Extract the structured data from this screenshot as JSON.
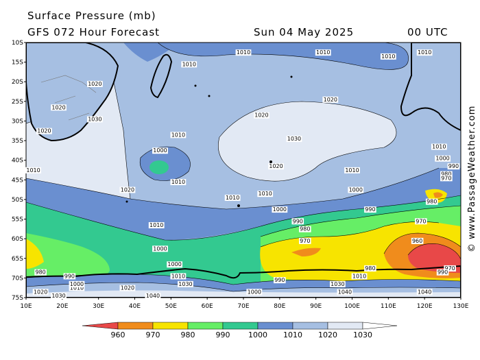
{
  "header": {
    "title": "Surface Pressure (mb)",
    "subtitle": "GFS 072 Hour Forecast",
    "date": "Sun 04 May 2025",
    "time": "00 UTC"
  },
  "credit": "© www.PassageWeather.com",
  "axes": {
    "lat_labels": [
      "10S",
      "15S",
      "20S",
      "25S",
      "30S",
      "35S",
      "40S",
      "45S",
      "50S",
      "55S",
      "60S",
      "65S",
      "70S",
      "75S"
    ],
    "lon_labels": [
      "10E",
      "20E",
      "30E",
      "40E",
      "50E",
      "60E",
      "70E",
      "80E",
      "90E",
      "100E",
      "110E",
      "120E",
      "130E"
    ]
  },
  "legend": {
    "values": [
      "960",
      "970",
      "980",
      "990",
      "1000",
      "1010",
      "1020",
      "1030"
    ],
    "colors": [
      "#e84848",
      "#f08c1c",
      "#f7e400",
      "#66ee66",
      "#33c990",
      "#6a8fd0",
      "#a6bfe2",
      "#e2e9f4"
    ]
  },
  "isobar_labels": [
    {
      "text": "1010",
      "lon": 70,
      "lat": -13
    },
    {
      "text": "1010",
      "lon": 92,
      "lat": -13
    },
    {
      "text": "1010",
      "lon": 120,
      "lat": -13
    },
    {
      "text": "1010",
      "lon": 55,
      "lat": -16
    },
    {
      "text": "1010",
      "lon": 110,
      "lat": -14
    },
    {
      "text": "1020",
      "lon": 29,
      "lat": -21
    },
    {
      "text": "1020",
      "lon": 19,
      "lat": -27
    },
    {
      "text": "1030",
      "lon": 29,
      "lat": -30
    },
    {
      "text": "1020",
      "lon": 15,
      "lat": -33
    },
    {
      "text": "1020",
      "lon": 94,
      "lat": -25
    },
    {
      "text": "1020",
      "lon": 75,
      "lat": -29
    },
    {
      "text": "1030",
      "lon": 84,
      "lat": -35
    },
    {
      "text": "1010",
      "lon": 52,
      "lat": -34
    },
    {
      "text": "1000",
      "lon": 47,
      "lat": -38
    },
    {
      "text": "1010",
      "lon": 124,
      "lat": -37
    },
    {
      "text": "1000",
      "lon": 125,
      "lat": -40
    },
    {
      "text": "1010",
      "lon": 12,
      "lat": -43
    },
    {
      "text": "1010",
      "lon": 52,
      "lat": -46
    },
    {
      "text": "1020",
      "lon": 79,
      "lat": -42
    },
    {
      "text": "1010",
      "lon": 100,
      "lat": -43
    },
    {
      "text": "980",
      "lon": 126,
      "lat": -44
    },
    {
      "text": "970",
      "lon": 126,
      "lat": -45
    },
    {
      "text": "990",
      "lon": 128,
      "lat": -42
    },
    {
      "text": "1020",
      "lon": 38,
      "lat": -48
    },
    {
      "text": "1010",
      "lon": 67,
      "lat": -50
    },
    {
      "text": "1010",
      "lon": 76,
      "lat": -49
    },
    {
      "text": "1000",
      "lon": 101,
      "lat": -48
    },
    {
      "text": "1000",
      "lon": 80,
      "lat": -53
    },
    {
      "text": "990",
      "lon": 85,
      "lat": -56
    },
    {
      "text": "990",
      "lon": 105,
      "lat": -53
    },
    {
      "text": "980",
      "lon": 122,
      "lat": -51
    },
    {
      "text": "970",
      "lon": 119,
      "lat": -56
    },
    {
      "text": "980",
      "lon": 87,
      "lat": -58
    },
    {
      "text": "970",
      "lon": 87,
      "lat": -61
    },
    {
      "text": "960",
      "lon": 118,
      "lat": -61
    },
    {
      "text": "1010",
      "lon": 46,
      "lat": -57
    },
    {
      "text": "1000",
      "lon": 47,
      "lat": -63
    },
    {
      "text": "1000",
      "lon": 51,
      "lat": -67
    },
    {
      "text": "1010",
      "lon": 52,
      "lat": -70
    },
    {
      "text": "1030",
      "lon": 54,
      "lat": -72
    },
    {
      "text": "1020",
      "lon": 38,
      "lat": -73
    },
    {
      "text": "1010",
      "lon": 24,
      "lat": -73
    },
    {
      "text": "1000",
      "lon": 24,
      "lat": -72
    },
    {
      "text": "990",
      "lon": 22,
      "lat": -70
    },
    {
      "text": "980",
      "lon": 14,
      "lat": -69
    },
    {
      "text": "1020",
      "lon": 14,
      "lat": -74
    },
    {
      "text": "1030",
      "lon": 19,
      "lat": -75
    },
    {
      "text": "1040",
      "lon": 45,
      "lat": -75
    },
    {
      "text": "1000",
      "lon": 73,
      "lat": -74
    },
    {
      "text": "990",
      "lon": 80,
      "lat": -71
    },
    {
      "text": "980",
      "lon": 105,
      "lat": -68
    },
    {
      "text": "1010",
      "lon": 102,
      "lat": -70
    },
    {
      "text": "1030",
      "lon": 96,
      "lat": -72
    },
    {
      "text": "1040",
      "lon": 98,
      "lat": -74
    },
    {
      "text": "1040",
      "lon": 120,
      "lat": -74
    },
    {
      "text": "970",
      "lon": 127,
      "lat": -68
    },
    {
      "text": "990",
      "lon": 125,
      "lat": -69
    }
  ]
}
